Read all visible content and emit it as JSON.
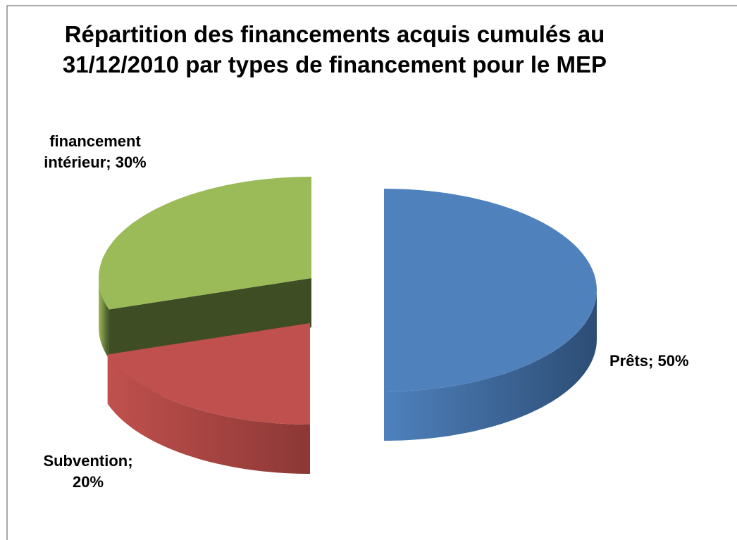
{
  "chart_data": {
    "type": "pie",
    "title": "Répartition des financements acquis cumulés au 31/12/2010 par types de financement pour le MEP",
    "values": [
      50,
      20,
      30
    ],
    "value_labels": [
      "Prêts; 50%",
      "Subvention; 20%",
      "financement intérieur; 30%"
    ],
    "colors": [
      "#4f81bd",
      "#c0504d",
      "#9bbb59"
    ],
    "exploded": true,
    "three_d": true
  }
}
